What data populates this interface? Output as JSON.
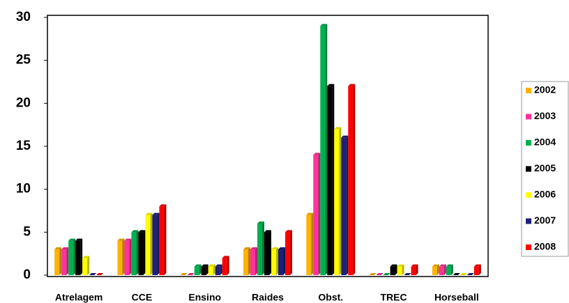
{
  "chart_data": {
    "type": "bar",
    "categories": [
      "Atrelagem",
      "CCE",
      "Ensino",
      "Raides",
      "Obst.",
      "TREC",
      "Horseball"
    ],
    "series": [
      {
        "name": "2002",
        "color": "#ffb300",
        "values": [
          3,
          4,
          0,
          3,
          7,
          0,
          1
        ]
      },
      {
        "name": "2003",
        "color": "#ff3399",
        "values": [
          3,
          4,
          0,
          3,
          14,
          0,
          1
        ]
      },
      {
        "name": "2004",
        "color": "#00b050",
        "values": [
          4,
          5,
          1,
          6,
          29,
          0,
          1
        ]
      },
      {
        "name": "2005",
        "color": "#000000",
        "values": [
          4,
          5,
          1,
          5,
          22,
          1,
          0
        ]
      },
      {
        "name": "2006",
        "color": "#ffff00",
        "values": [
          2,
          7,
          1,
          3,
          17,
          1,
          0
        ]
      },
      {
        "name": "2007",
        "color": "#1f1f7a",
        "values": [
          0,
          7,
          1,
          3,
          16,
          0,
          0
        ]
      },
      {
        "name": "2008",
        "color": "#ff0000",
        "values": [
          0,
          8,
          2,
          5,
          22,
          1,
          1
        ]
      }
    ],
    "ylim": [
      0,
      30
    ],
    "yticks": [
      0,
      5,
      10,
      15,
      20,
      25,
      30
    ],
    "grid": false,
    "legend": "right"
  }
}
